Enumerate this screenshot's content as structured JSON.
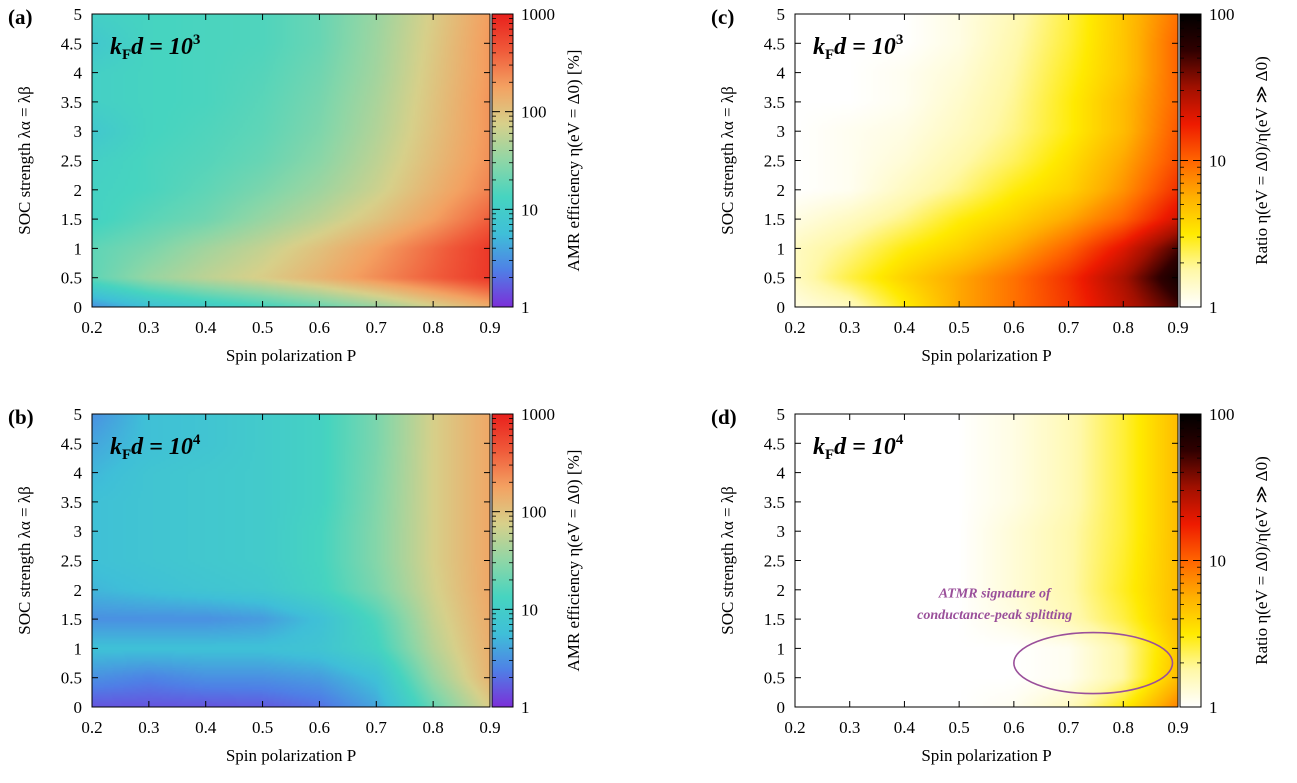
{
  "colors": {
    "amr_scale": [
      "#7b2fd8",
      "#4f7fe6",
      "#3fbfd8",
      "#46d4c0",
      "#8fd6a6",
      "#d7d08a",
      "#f3a262",
      "#f05a3a",
      "#e8201c"
    ],
    "ratio_scale": [
      "#ffffff",
      "#fff8a8",
      "#ffea00",
      "#ffb000",
      "#ff6400",
      "#ee1a00",
      "#a01000",
      "#300000",
      "#000000"
    ],
    "ellipse": "#9a4f9a"
  },
  "chart_data": [
    {
      "id": "a",
      "panel_label": "(a)",
      "type": "heatmap",
      "annotation_text": "k",
      "annotation_sub": "F",
      "annotation_tail": "d = 10",
      "annotation_exp": "3",
      "xlabel": "Spin polarization P",
      "ylabel": "SOC strength λα = λβ",
      "colorbar_label": "AMR efficiency η(eV = Δ0) [%]",
      "colorbar_scale": "log",
      "colorbar_range": [
        1,
        1000
      ],
      "colorbar_ticks": [
        "1",
        "10",
        "100",
        "1000"
      ],
      "colormap": "amr_scale",
      "xlim": [
        0.2,
        0.9
      ],
      "ylim": [
        0,
        5
      ],
      "x_ticks": [
        "0.2",
        "0.3",
        "0.4",
        "0.5",
        "0.6",
        "0.7",
        "0.8",
        "0.9"
      ],
      "y_ticks": [
        "0",
        "0.5",
        "1",
        "1.5",
        "2",
        "2.5",
        "3",
        "3.5",
        "4",
        "4.5",
        "5"
      ],
      "x": [
        0.2,
        0.3,
        0.4,
        0.5,
        0.6,
        0.7,
        0.8,
        0.9
      ],
      "y": [
        0,
        0.5,
        1,
        1.5,
        2,
        2.5,
        3,
        3.5,
        4,
        4.5,
        5
      ],
      "z": [
        [
          3,
          6,
          9,
          13,
          20,
          35,
          70,
          140
        ],
        [
          18,
          35,
          55,
          80,
          130,
          230,
          400,
          700
        ],
        [
          18,
          25,
          40,
          60,
          100,
          180,
          350,
          700
        ],
        [
          12,
          17,
          22,
          35,
          55,
          95,
          180,
          400
        ],
        [
          12,
          14,
          18,
          25,
          38,
          65,
          130,
          260
        ],
        [
          11,
          14,
          16,
          20,
          30,
          55,
          110,
          220
        ],
        [
          8,
          13,
          15,
          18,
          26,
          48,
          100,
          210
        ],
        [
          11,
          13,
          14,
          17,
          24,
          44,
          95,
          210
        ],
        [
          11,
          13,
          14,
          16,
          22,
          40,
          90,
          200
        ],
        [
          8,
          13,
          14,
          15,
          20,
          38,
          85,
          200
        ],
        [
          11,
          13,
          14,
          15,
          20,
          36,
          80,
          190
        ]
      ]
    },
    {
      "id": "b",
      "panel_label": "(b)",
      "type": "heatmap",
      "annotation_text": "k",
      "annotation_sub": "F",
      "annotation_tail": "d = 10",
      "annotation_exp": "4",
      "xlabel": "Spin polarization P",
      "ylabel": "SOC strength λα = λβ",
      "colorbar_label": "AMR efficiency η(eV = Δ0) [%]",
      "colorbar_scale": "log",
      "colorbar_range": [
        1,
        1000
      ],
      "colorbar_ticks": [
        "1",
        "10",
        "100",
        "1000"
      ],
      "colormap": "amr_scale",
      "xlim": [
        0.2,
        0.9
      ],
      "ylim": [
        0,
        5
      ],
      "x_ticks": [
        "0.2",
        "0.3",
        "0.4",
        "0.5",
        "0.6",
        "0.7",
        "0.8",
        "0.9"
      ],
      "y_ticks": [
        "0",
        "0.5",
        "1",
        "1.5",
        "2",
        "2.5",
        "3",
        "3.5",
        "4",
        "4.5",
        "5"
      ],
      "x": [
        0.2,
        0.3,
        0.4,
        0.5,
        0.6,
        0.7,
        0.8,
        0.9
      ],
      "y": [
        0,
        0.5,
        1,
        1.5,
        2,
        2.5,
        3,
        3.5,
        4,
        4.5,
        5
      ],
      "z": [
        [
          1.5,
          1.5,
          1.5,
          1.6,
          2,
          4,
          20,
          80
        ],
        [
          3,
          2.5,
          3,
          3,
          3.5,
          6,
          35,
          130
        ],
        [
          6,
          6,
          6,
          6,
          7,
          12,
          50,
          140
        ],
        [
          3,
          3,
          3,
          3.5,
          6,
          15,
          60,
          150
        ],
        [
          5,
          6,
          7,
          8,
          12,
          25,
          70,
          160
        ],
        [
          6,
          7,
          8,
          9,
          13,
          28,
          75,
          160
        ],
        [
          6,
          7,
          8,
          9,
          13,
          28,
          75,
          160
        ],
        [
          6,
          7,
          8,
          9,
          12,
          27,
          75,
          160
        ],
        [
          5,
          7,
          8,
          9,
          12,
          26,
          75,
          160
        ],
        [
          4,
          6,
          7,
          9,
          12,
          25,
          75,
          160
        ],
        [
          3,
          6,
          7,
          9,
          12,
          25,
          75,
          160
        ]
      ]
    },
    {
      "id": "c",
      "panel_label": "(c)",
      "type": "heatmap",
      "annotation_text": "k",
      "annotation_sub": "F",
      "annotation_tail": "d = 10",
      "annotation_exp": "3",
      "xlabel": "Spin polarization P",
      "ylabel": "SOC strength λα = λβ",
      "colorbar_label": "Ratio η(eV = Δ0)/η(eV ≫ Δ0)",
      "colorbar_scale": "log",
      "colorbar_range": [
        1,
        100
      ],
      "colorbar_ticks": [
        "1",
        "10",
        "100"
      ],
      "colormap": "ratio_scale",
      "xlim": [
        0.2,
        0.9
      ],
      "ylim": [
        0,
        5
      ],
      "x_ticks": [
        "0.2",
        "0.3",
        "0.4",
        "0.5",
        "0.6",
        "0.7",
        "0.8",
        "0.9"
      ],
      "y_ticks": [
        "0",
        "0.5",
        "1",
        "1.5",
        "2",
        "2.5",
        "3",
        "3.5",
        "4",
        "4.5",
        "5"
      ],
      "x": [
        0.2,
        0.3,
        0.4,
        0.5,
        0.6,
        0.7,
        0.8,
        0.9
      ],
      "y": [
        0,
        0.5,
        1,
        1.5,
        2,
        2.5,
        3,
        3.5,
        4,
        4.5,
        5
      ],
      "z": [
        [
          1.2,
          1.5,
          3,
          6,
          9,
          14,
          25,
          50
        ],
        [
          1.5,
          2.5,
          4,
          6,
          9,
          15,
          30,
          80
        ],
        [
          1.5,
          2,
          3,
          4,
          6,
          10,
          20,
          50
        ],
        [
          1.2,
          1.5,
          2,
          3,
          4,
          6,
          10,
          22
        ],
        [
          1,
          1.1,
          1.5,
          2,
          3,
          4,
          7,
          15
        ],
        [
          1,
          1.1,
          1.3,
          1.7,
          2.3,
          3.5,
          6,
          12
        ],
        [
          1,
          1.1,
          1.2,
          1.5,
          2,
          3,
          5,
          11
        ],
        [
          1,
          1,
          1.1,
          1.4,
          1.9,
          3,
          5,
          10
        ],
        [
          1,
          1,
          1.1,
          1.3,
          1.8,
          2.8,
          4.5,
          10
        ],
        [
          1,
          1,
          1,
          1.2,
          1.7,
          2.6,
          4.5,
          10
        ],
        [
          1,
          1,
          1,
          1.2,
          1.6,
          2.5,
          4.5,
          9
        ]
      ]
    },
    {
      "id": "d",
      "panel_label": "(d)",
      "type": "heatmap",
      "annotation_text": "k",
      "annotation_sub": "F",
      "annotation_tail": "d = 10",
      "annotation_exp": "4",
      "xlabel": "Spin polarization P",
      "ylabel": "SOC strength λα = λβ",
      "colorbar_label": "Ratio η(eV = Δ0)/η(eV ≫ Δ0)",
      "colorbar_scale": "log",
      "colorbar_range": [
        1,
        100
      ],
      "colorbar_ticks": [
        "1",
        "10",
        "100"
      ],
      "colormap": "ratio_scale",
      "xlim": [
        0.2,
        0.9
      ],
      "ylim": [
        0,
        5
      ],
      "x_ticks": [
        "0.2",
        "0.3",
        "0.4",
        "0.5",
        "0.6",
        "0.7",
        "0.8",
        "0.9"
      ],
      "y_ticks": [
        "0",
        "0.5",
        "1",
        "1.5",
        "2",
        "2.5",
        "3",
        "3.5",
        "4",
        "4.5",
        "5"
      ],
      "x": [
        0.2,
        0.3,
        0.4,
        0.5,
        0.6,
        0.7,
        0.8,
        0.9
      ],
      "y": [
        0,
        0.5,
        1,
        1.5,
        2,
        2.5,
        3,
        3.5,
        4,
        4.5,
        5
      ],
      "z": [
        [
          1,
          1,
          1,
          1,
          1.1,
          1.5,
          3,
          8
        ],
        [
          1,
          1,
          1,
          1,
          1,
          1.1,
          1.8,
          5
        ],
        [
          1,
          1,
          1,
          1,
          1,
          1.1,
          1.8,
          4.5
        ],
        [
          1,
          1,
          1,
          1,
          1.2,
          1.6,
          2.5,
          5
        ],
        [
          1,
          1,
          1,
          1,
          1.3,
          1.7,
          2.8,
          5
        ],
        [
          1,
          1,
          1,
          1,
          1.3,
          1.7,
          2.7,
          5
        ],
        [
          1,
          1,
          1,
          1,
          1.3,
          1.7,
          2.6,
          5
        ],
        [
          1,
          1,
          1,
          1,
          1.2,
          1.6,
          2.6,
          5
        ],
        [
          1,
          1,
          1,
          1,
          1.2,
          1.6,
          2.6,
          5
        ],
        [
          1,
          1,
          1,
          1,
          1.2,
          1.6,
          2.6,
          5
        ],
        [
          1,
          1,
          1,
          1,
          1.2,
          1.6,
          2.6,
          5
        ]
      ],
      "callout": {
        "line1": "ATMR signature of",
        "line2": "conductance-peak splitting",
        "ellipse_center": [
          0.745,
          0.75
        ],
        "ellipse_radius": [
          0.145,
          0.52
        ]
      }
    }
  ]
}
